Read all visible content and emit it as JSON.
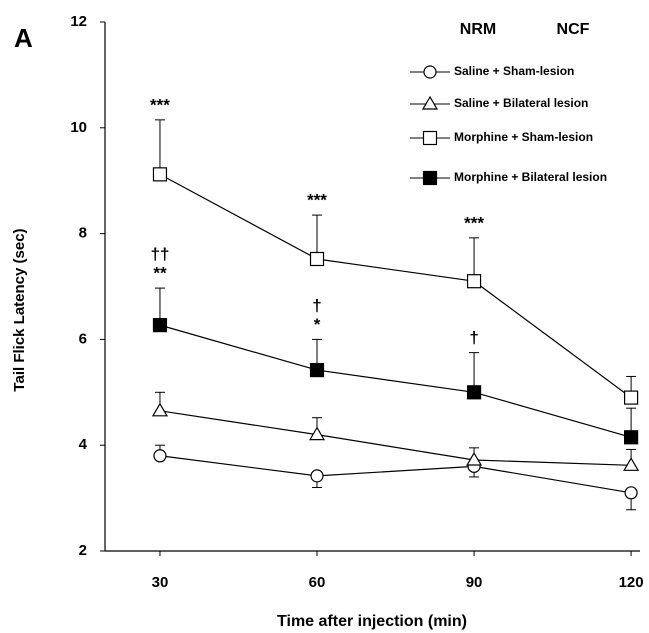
{
  "chart_data": {
    "type": "line",
    "panel": "A",
    "x_label": "Time after injection (min)",
    "y_label": "Tail Flick Latency (sec)",
    "legend_headers": [
      "NRM",
      "NCF"
    ],
    "x": [
      30,
      60,
      90,
      120
    ],
    "xlim": [
      19.5,
      121.7
    ],
    "xticks": [
      30,
      60,
      90,
      120
    ],
    "ylim": [
      2,
      12
    ],
    "yticks": [
      2,
      4,
      6,
      8,
      10,
      12
    ],
    "series": [
      {
        "name": "Saline + Sham-lesion",
        "marker": "circle",
        "filled": false,
        "color": "#000000",
        "values": [
          3.8,
          3.42,
          3.6,
          3.1
        ],
        "errors": [
          0.2,
          0.22,
          0.2,
          0.32
        ],
        "error_directions": [
          "up",
          "down",
          "down",
          "down"
        ]
      },
      {
        "name": "Saline + Bilateral lesion",
        "marker": "triangle",
        "filled": false,
        "color": "#000000",
        "values": [
          4.65,
          4.2,
          3.72,
          3.62
        ],
        "errors": [
          0.35,
          0.32,
          0.23,
          0.3
        ],
        "error_directions": [
          "up",
          "up",
          "up",
          "up"
        ]
      },
      {
        "name": "Morphine + Sham-lesion",
        "marker": "square",
        "filled": false,
        "color": "#000000",
        "values": [
          9.12,
          7.52,
          7.1,
          4.9
        ],
        "errors": [
          1.03,
          0.83,
          0.82,
          0.4
        ],
        "error_directions": [
          "up",
          "up",
          "up",
          "up"
        ],
        "labels": [
          [
            "***"
          ],
          [
            "***"
          ],
          [
            "***"
          ],
          null
        ]
      },
      {
        "name": "Morphine + Bilateral lesion",
        "marker": "square",
        "filled": true,
        "color": "#000000",
        "values": [
          6.27,
          5.42,
          5.0,
          4.15
        ],
        "errors": [
          0.7,
          0.58,
          0.75,
          0.55
        ],
        "error_directions": [
          "up",
          "up",
          "up",
          "up"
        ],
        "labels": [
          [
            "††",
            "**"
          ],
          [
            "†",
            "*"
          ],
          [
            "†"
          ],
          null
        ]
      }
    ]
  }
}
